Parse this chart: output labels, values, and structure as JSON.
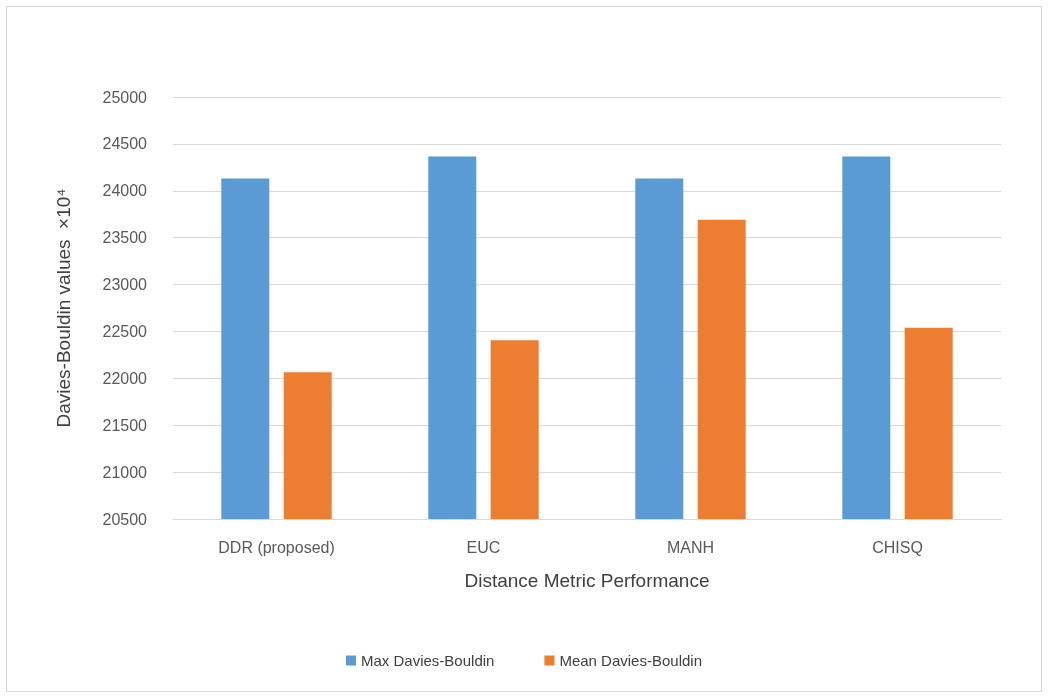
{
  "chart_data": {
    "type": "bar",
    "xlabel": "Distance Metric Performance",
    "ylabel": "Davies-Bouldin values  ×10⁴",
    "categories": [
      "DDR (proposed)",
      "EUC",
      "MANH",
      "CHISQ"
    ],
    "series": [
      {
        "name": "Max Davies-Bouldin",
        "color": "#5b9bd5",
        "values": [
          24130,
          24365,
          24130,
          24365
        ]
      },
      {
        "name": "Mean Davies-Bouldin",
        "color": "#ed7d31",
        "values": [
          22065,
          22405,
          23690,
          22540
        ]
      }
    ],
    "ylim": [
      20500,
      25000
    ],
    "yticks": [
      20500,
      21000,
      21500,
      22000,
      22500,
      23000,
      23500,
      24000,
      24500,
      25000
    ],
    "grid": "y",
    "legend": "bottom"
  }
}
